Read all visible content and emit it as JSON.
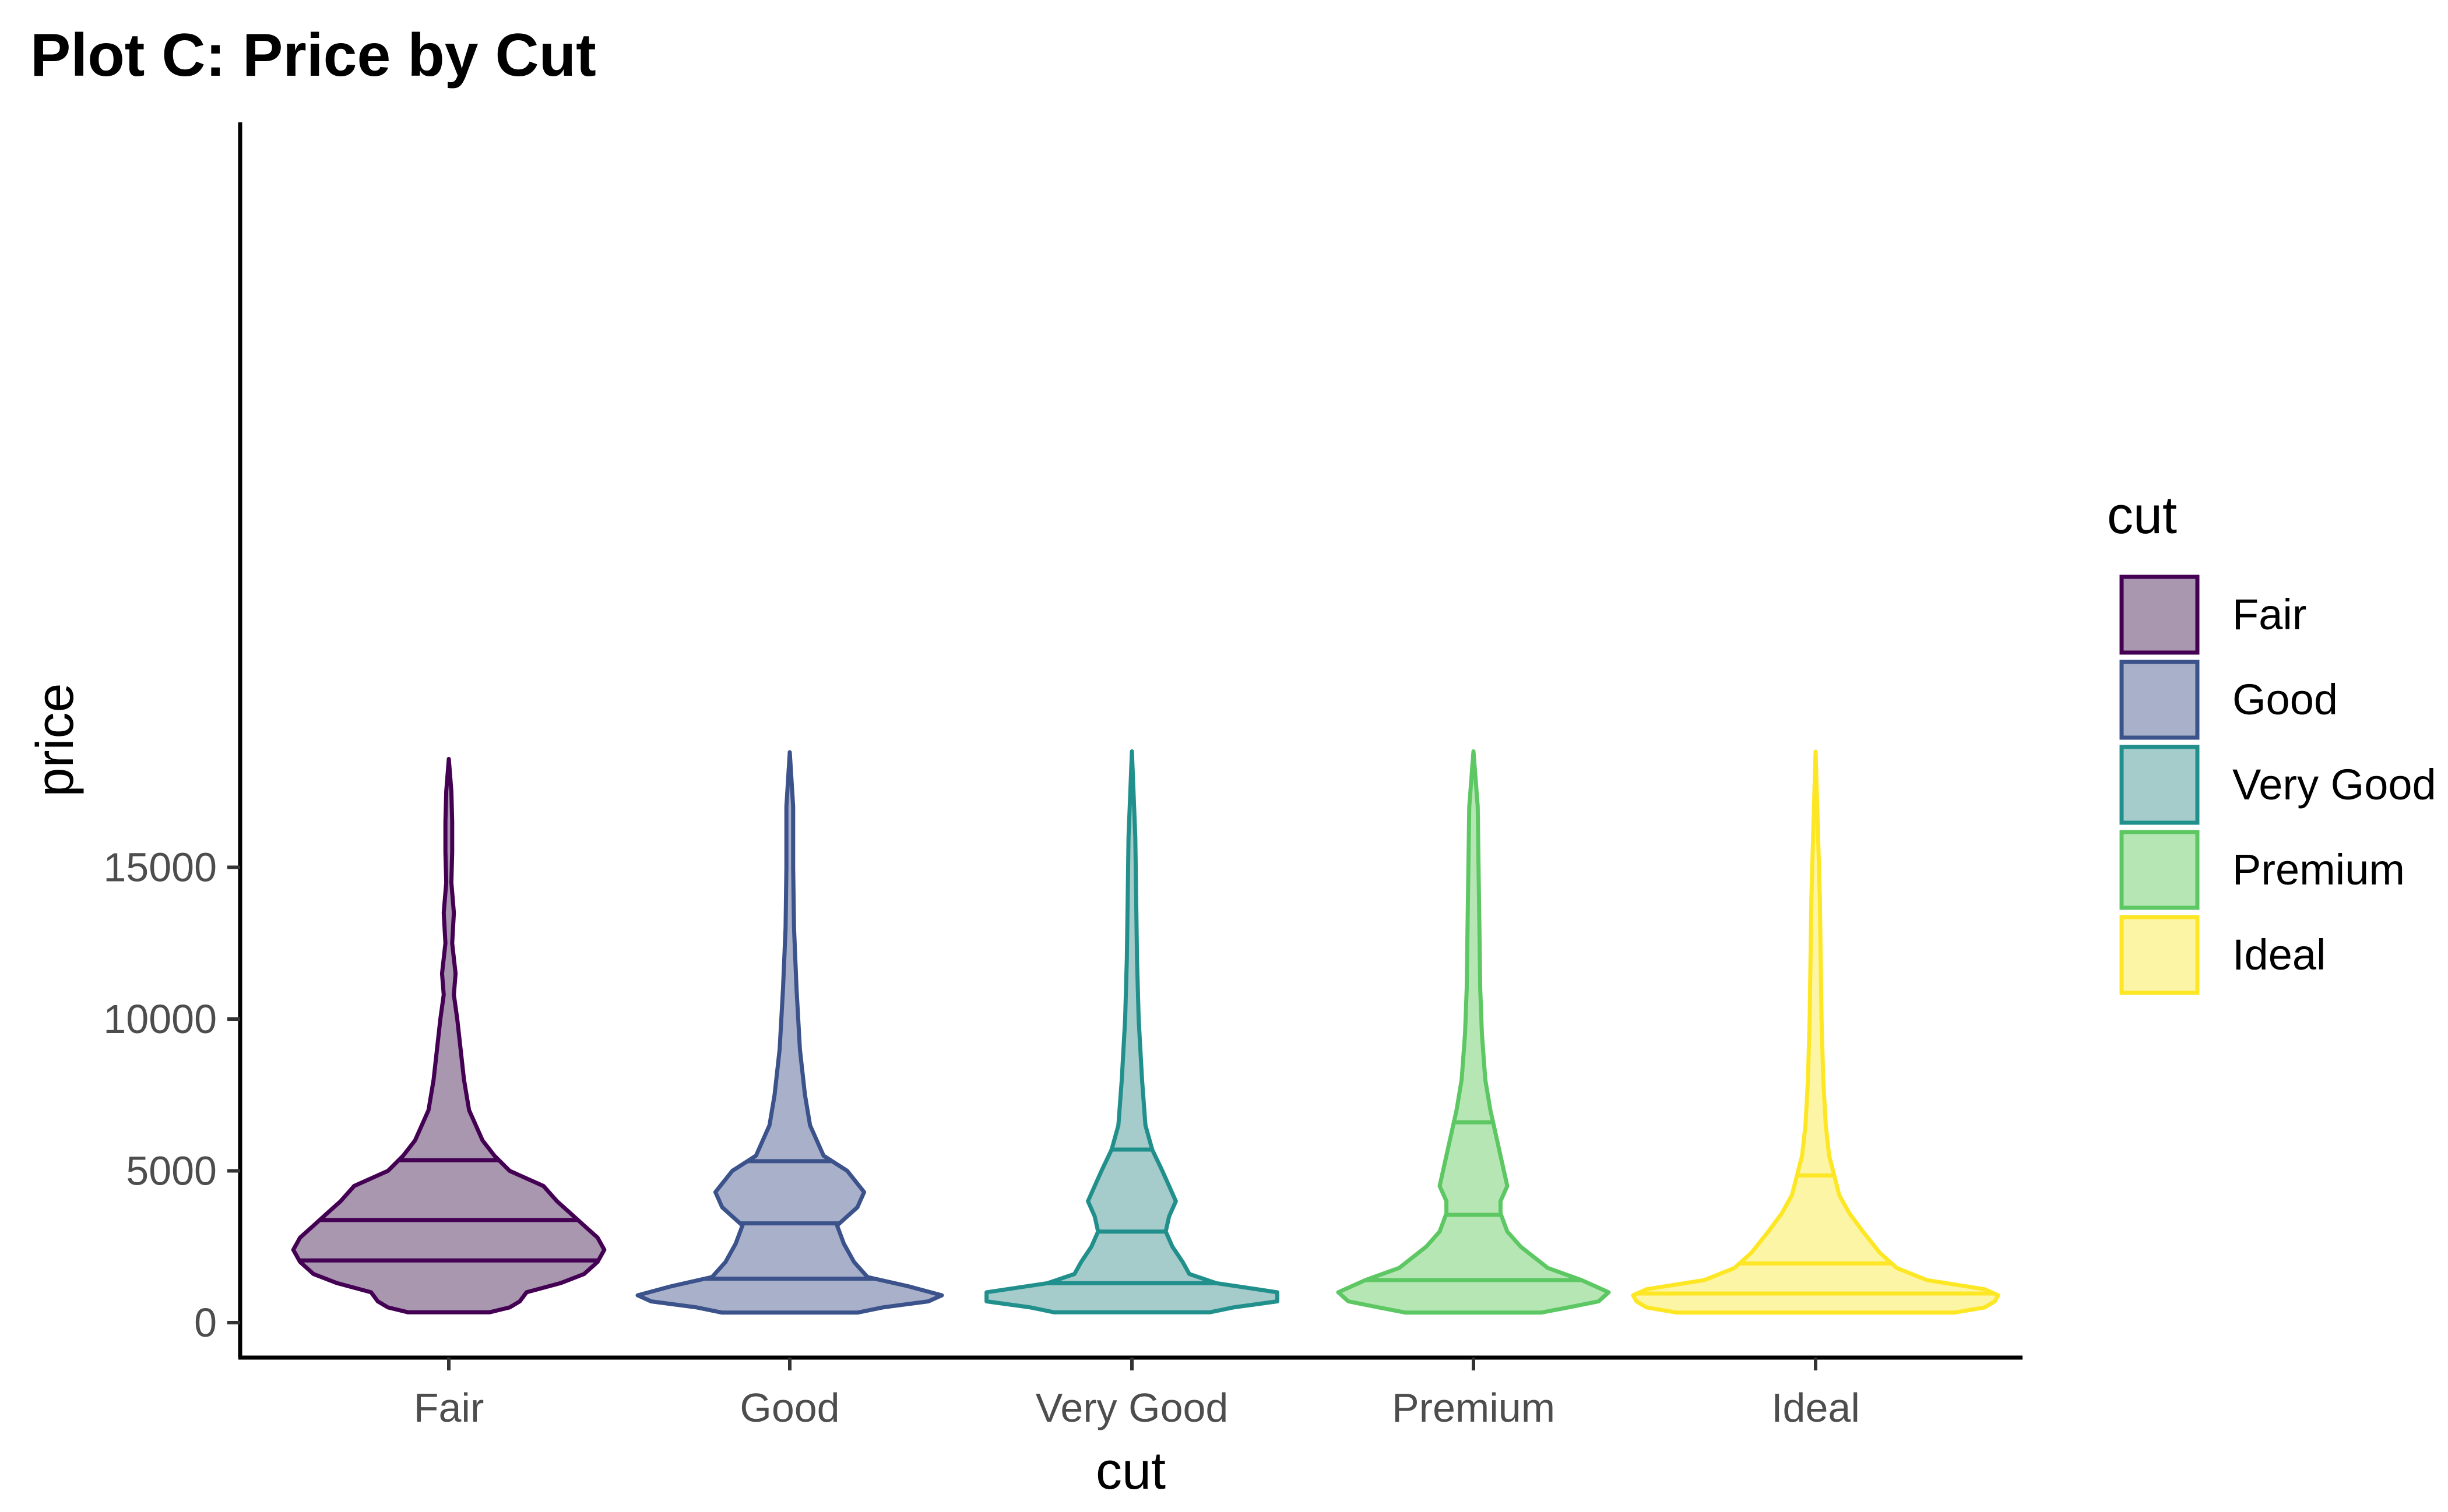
{
  "chart_data": {
    "type": "violin",
    "title": "Plot C: Price by Cut",
    "xlabel": "cut",
    "ylabel": "price",
    "categories": [
      "Fair",
      "Good",
      "Very Good",
      "Premium",
      "Ideal"
    ],
    "ylim": [
      -500,
      19500
    ],
    "yticks": [
      {
        "value": 0,
        "label": "0"
      },
      {
        "value": 5000,
        "label": "5000"
      },
      {
        "value": 10000,
        "label": "10000"
      },
      {
        "value": 15000,
        "label": "15000"
      }
    ],
    "quantiles_drawn": [
      0.25,
      0.5,
      0.75
    ],
    "grid": false,
    "legend": {
      "title": "cut",
      "placement": "right",
      "items": [
        "Fair",
        "Good",
        "Very Good",
        "Premium",
        "Ideal"
      ]
    },
    "series": [
      {
        "name": "Fair",
        "color": "#440154",
        "fill": "#a997b0",
        "min": 340,
        "max": 18570,
        "quartiles": [
          2050,
          3380,
          5350
        ],
        "density": [
          [
            340,
            0.24
          ],
          [
            500,
            0.36
          ],
          [
            700,
            0.42
          ],
          [
            1000,
            0.46
          ],
          [
            1300,
            0.66
          ],
          [
            1600,
            0.8
          ],
          [
            2000,
            0.88
          ],
          [
            2400,
            0.92
          ],
          [
            2800,
            0.88
          ],
          [
            3200,
            0.8
          ],
          [
            3600,
            0.72
          ],
          [
            4000,
            0.64
          ],
          [
            4500,
            0.56
          ],
          [
            5000,
            0.36
          ],
          [
            5500,
            0.27
          ],
          [
            6000,
            0.2
          ],
          [
            7000,
            0.12
          ],
          [
            8000,
            0.09
          ],
          [
            9000,
            0.07
          ],
          [
            10000,
            0.05
          ],
          [
            10800,
            0.03
          ],
          [
            11500,
            0.04
          ],
          [
            12500,
            0.02
          ],
          [
            13500,
            0.03
          ],
          [
            14500,
            0.015
          ],
          [
            15500,
            0.02
          ],
          [
            16500,
            0.02
          ],
          [
            17500,
            0.015
          ],
          [
            18570,
            0.0
          ]
        ]
      },
      {
        "name": "Good",
        "color": "#3b528b",
        "fill": "#a9b0ca",
        "min": 330,
        "max": 18790,
        "quartiles": [
          1450,
          3270,
          5320
        ],
        "density": [
          [
            330,
            0.4
          ],
          [
            500,
            0.55
          ],
          [
            700,
            0.82
          ],
          [
            900,
            0.9
          ],
          [
            1200,
            0.7
          ],
          [
            1500,
            0.46
          ],
          [
            2000,
            0.38
          ],
          [
            2600,
            0.32
          ],
          [
            3200,
            0.28
          ],
          [
            3800,
            0.4
          ],
          [
            4300,
            0.44
          ],
          [
            5000,
            0.34
          ],
          [
            5500,
            0.2
          ],
          [
            6500,
            0.12
          ],
          [
            7500,
            0.09
          ],
          [
            9000,
            0.06
          ],
          [
            11000,
            0.04
          ],
          [
            13000,
            0.025
          ],
          [
            15000,
            0.02
          ],
          [
            17000,
            0.02
          ],
          [
            18790,
            0.0
          ]
        ]
      },
      {
        "name": "Very Good",
        "color": "#21908c",
        "fill": "#a5ccca",
        "min": 340,
        "max": 18820,
        "quartiles": [
          1300,
          3000,
          5700
        ],
        "density": [
          [
            340,
            0.46
          ],
          [
            500,
            0.6
          ],
          [
            700,
            0.86
          ],
          [
            1000,
            0.86
          ],
          [
            1300,
            0.5
          ],
          [
            1600,
            0.34
          ],
          [
            2000,
            0.3
          ],
          [
            2500,
            0.24
          ],
          [
            3000,
            0.2
          ],
          [
            3500,
            0.22
          ],
          [
            4000,
            0.26
          ],
          [
            4500,
            0.22
          ],
          [
            5000,
            0.18
          ],
          [
            5700,
            0.12
          ],
          [
            6500,
            0.08
          ],
          [
            8000,
            0.06
          ],
          [
            10000,
            0.04
          ],
          [
            12000,
            0.03
          ],
          [
            14000,
            0.025
          ],
          [
            16000,
            0.02
          ],
          [
            18820,
            0.0
          ]
        ]
      },
      {
        "name": "Premium",
        "color": "#5dc863",
        "fill": "#b7e6b5",
        "min": 330,
        "max": 18820,
        "quartiles": [
          1400,
          3550,
          6600
        ],
        "density": [
          [
            330,
            0.4
          ],
          [
            500,
            0.56
          ],
          [
            700,
            0.74
          ],
          [
            1000,
            0.8
          ],
          [
            1400,
            0.64
          ],
          [
            1800,
            0.44
          ],
          [
            2500,
            0.28
          ],
          [
            3000,
            0.2
          ],
          [
            3600,
            0.16
          ],
          [
            4000,
            0.16
          ],
          [
            4500,
            0.2
          ],
          [
            5000,
            0.18
          ],
          [
            6000,
            0.14
          ],
          [
            7000,
            0.1
          ],
          [
            8000,
            0.07
          ],
          [
            9500,
            0.05
          ],
          [
            11000,
            0.04
          ],
          [
            13000,
            0.035
          ],
          [
            15000,
            0.03
          ],
          [
            17000,
            0.025
          ],
          [
            18820,
            0.0
          ]
        ]
      },
      {
        "name": "Ideal",
        "color": "#fde725",
        "fill": "#fdf5a6",
        "min": 330,
        "max": 18810,
        "quartiles": [
          960,
          1950,
          4850
        ],
        "density": [
          [
            330,
            0.82
          ],
          [
            500,
            1.0
          ],
          [
            700,
            1.06
          ],
          [
            900,
            1.08
          ],
          [
            1100,
            1.0
          ],
          [
            1400,
            0.66
          ],
          [
            1800,
            0.48
          ],
          [
            2300,
            0.38
          ],
          [
            3000,
            0.28
          ],
          [
            3600,
            0.2
          ],
          [
            4200,
            0.14
          ],
          [
            4850,
            0.11
          ],
          [
            5500,
            0.08
          ],
          [
            6500,
            0.06
          ],
          [
            8000,
            0.045
          ],
          [
            10000,
            0.035
          ],
          [
            12000,
            0.03
          ],
          [
            14000,
            0.025
          ],
          [
            16000,
            0.015
          ],
          [
            18810,
            0.0
          ]
        ]
      }
    ]
  }
}
